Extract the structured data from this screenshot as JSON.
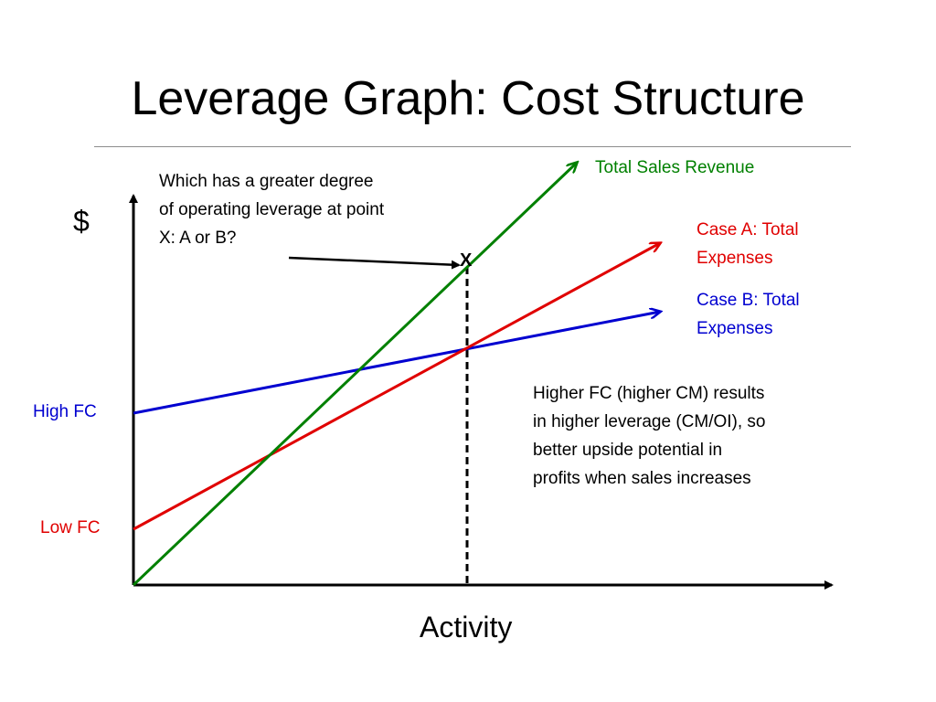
{
  "slide": {
    "title": "Leverage Graph: Cost Structure"
  },
  "axes": {
    "y_label": "$",
    "x_label": "Activity"
  },
  "lines": [
    {
      "name": "Total Sales Revenue",
      "color": "#008000"
    },
    {
      "name": "Case A: Total\nExpenses",
      "color": "#e00000"
    },
    {
      "name": "Case B: Total\nExpenses",
      "color": "#0000d0"
    }
  ],
  "intercept_labels": {
    "high_fc": "High FC",
    "low_fc": "Low FC"
  },
  "annotations": {
    "question": "Which has a greater degree\nof operating leverage at point\nX: A or B?",
    "point_x": "X",
    "explanation": "Higher FC (higher CM) results\nin higher leverage (CM/OI), so\nbetter upside potential in\nprofits when sales increases"
  },
  "colors": {
    "revenue": "#008000",
    "case_a": "#e00000",
    "case_b": "#0000d0",
    "axis": "#000000"
  }
}
